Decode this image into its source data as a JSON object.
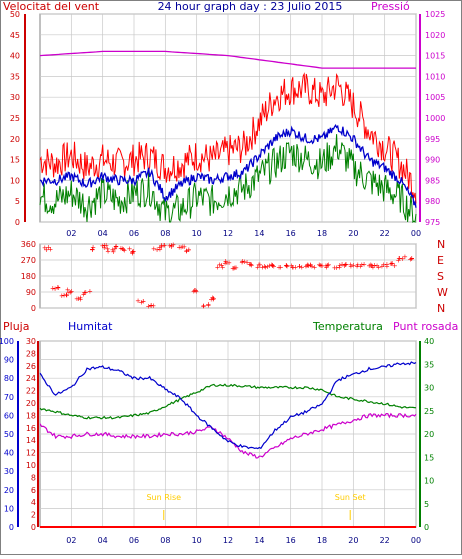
{
  "header": {
    "left_label": "Velocitat del vent",
    "title": "24 hour graph day : 23 Julio 2015",
    "right_label": "Pressió"
  },
  "colors": {
    "wind_gust": "#ff0000",
    "wind_avg": "#0000cc",
    "wind_low": "#008000",
    "pressure": "#cc00cc",
    "direction": "#ff0000",
    "humidity": "#0000cc",
    "temperature": "#008000",
    "dewpoint": "#cc00cc",
    "rain": "#ff0000",
    "sun_markers": "#ffcc00",
    "grid": "#c8c8c8",
    "left_axis": "#cc0000",
    "right_axis": "#cc00cc",
    "humidity_axis": "#0000cc",
    "temp_axis": "#008000"
  },
  "chart_data": [
    {
      "id": "wind",
      "type": "line",
      "title": "24 hour graph day : 23 Julio 2015",
      "ylabel_left": "Velocitat del vent",
      "ylabel_right": "Pressió",
      "ylim": [
        0,
        50
      ],
      "yticks": [
        0,
        5,
        10,
        15,
        20,
        25,
        30,
        35,
        40,
        45,
        50
      ],
      "ylim_right": [
        975,
        1025
      ],
      "yticks_right": [
        975,
        980,
        985,
        990,
        995,
        1000,
        1005,
        1010,
        1015,
        1020,
        1025
      ],
      "xlim": [
        0,
        24
      ],
      "xticks": [
        "02",
        "04",
        "06",
        "08",
        "10",
        "12",
        "14",
        "16",
        "18",
        "20",
        "22",
        "00"
      ],
      "series": [
        {
          "key": "gust",
          "axis": "left",
          "x": [
            0,
            1,
            2,
            3,
            4,
            5,
            6,
            7,
            8,
            9,
            10,
            11,
            12,
            13,
            14,
            15,
            16,
            17,
            18,
            19,
            20,
            21,
            22,
            23,
            24
          ],
          "values": [
            15,
            14,
            16,
            13,
            15,
            14,
            15,
            16,
            13,
            14,
            16,
            15,
            17,
            18,
            24,
            30,
            32,
            32,
            30,
            33,
            28,
            22,
            18,
            14,
            8
          ]
        },
        {
          "key": "average",
          "axis": "left",
          "x": [
            0,
            1,
            2,
            3,
            4,
            5,
            6,
            7,
            8,
            9,
            10,
            11,
            12,
            13,
            14,
            15,
            16,
            17,
            18,
            19,
            20,
            21,
            22,
            23,
            24
          ],
          "values": [
            10,
            10,
            11,
            9,
            11,
            10,
            10,
            12,
            6,
            9,
            11,
            10,
            11,
            12,
            16,
            20,
            22,
            20,
            20,
            23,
            20,
            15,
            13,
            10,
            4
          ]
        },
        {
          "key": "low",
          "axis": "left",
          "x": [
            0,
            1,
            2,
            3,
            4,
            5,
            6,
            7,
            8,
            9,
            10,
            11,
            12,
            13,
            14,
            15,
            16,
            17,
            18,
            19,
            20,
            21,
            22,
            23,
            24
          ],
          "values": [
            6,
            5,
            7,
            4,
            7,
            5,
            7,
            8,
            2,
            3,
            6,
            5,
            7,
            8,
            11,
            14,
            17,
            15,
            14,
            18,
            13,
            10,
            8,
            6,
            1
          ]
        },
        {
          "key": "pressure",
          "axis": "right",
          "x": [
            0,
            2,
            4,
            6,
            8,
            10,
            12,
            14,
            16,
            18,
            20,
            22,
            24
          ],
          "values": [
            1015,
            1015.5,
            1016,
            1016,
            1016,
            1015.5,
            1015,
            1014,
            1013,
            1012,
            1012,
            1012,
            1012
          ]
        }
      ]
    },
    {
      "id": "direction",
      "type": "scatter",
      "ylim": [
        0,
        360
      ],
      "yticks": [
        0,
        90,
        180,
        270,
        360
      ],
      "ylabels_right": [
        "N",
        "W",
        "S",
        "E",
        "N"
      ],
      "xlim": [
        0,
        24
      ],
      "x": [
        0.5,
        1,
        1.5,
        2,
        2.5,
        3,
        3.5,
        4,
        4.5,
        5,
        5.5,
        6,
        6.5,
        7,
        7.5,
        8,
        8.5,
        9,
        9.5,
        10,
        10.5,
        11,
        11.5,
        12,
        12.5,
        13,
        13.5,
        14,
        14.5,
        15,
        15.5,
        16,
        16.5,
        17,
        17.5,
        18,
        18.5,
        19,
        19.5,
        20,
        20.5,
        21,
        21.5,
        22,
        22.5,
        23,
        23.5
      ],
      "values": [
        340,
        120,
        80,
        100,
        60,
        90,
        340,
        350,
        330,
        345,
        335,
        320,
        40,
        20,
        340,
        350,
        355,
        350,
        330,
        100,
        20,
        60,
        240,
        260,
        230,
        260,
        250,
        240,
        235,
        245,
        240,
        240,
        238,
        242,
        240,
        245,
        240,
        238,
        242,
        240,
        245,
        240,
        238,
        245,
        250,
        280,
        285
      ]
    },
    {
      "id": "environment",
      "type": "line",
      "ylabel_rain": "Pluja",
      "ylabel_humidity": "Humitat",
      "ylabel_temp": "Temperatura",
      "ylabel_dew": "Punt rosada",
      "humidity_lim": [
        0,
        100
      ],
      "humidity_ticks": [
        0,
        10,
        20,
        30,
        40,
        50,
        60,
        70,
        80,
        90,
        100
      ],
      "rain_lim": [
        0,
        30
      ],
      "rain_ticks": [
        0,
        2,
        4,
        6,
        8,
        10,
        12,
        14,
        16,
        18,
        20,
        22,
        24,
        26,
        28,
        30
      ],
      "temp_lim": [
        0,
        40
      ],
      "temp_ticks": [
        0,
        5,
        10,
        15,
        20,
        25,
        30,
        35,
        40
      ],
      "xlim": [
        0,
        24
      ],
      "xticks": [
        "02",
        "04",
        "06",
        "08",
        "10",
        "12",
        "14",
        "16",
        "18",
        "20",
        "22",
        "00"
      ],
      "sun_rise_label": "Sun Rise",
      "sun_set_label": "Sun Set",
      "sun_rise_x": 7.9,
      "sun_set_x": 19.8,
      "series": [
        {
          "key": "humidity",
          "axis": "humidity",
          "x": [
            0,
            1,
            2,
            3,
            4,
            5,
            6,
            7,
            8,
            9,
            10,
            11,
            12,
            13,
            14,
            15,
            16,
            17,
            18,
            19,
            20,
            21,
            22,
            23,
            24
          ],
          "values": [
            82,
            71,
            75,
            85,
            86,
            84,
            80,
            80,
            74,
            69,
            60,
            53,
            46,
            43,
            42,
            52,
            59,
            62,
            66,
            79,
            82,
            85,
            86,
            88,
            88
          ]
        },
        {
          "key": "temperature",
          "axis": "temp",
          "x": [
            0,
            1,
            2,
            3,
            4,
            5,
            6,
            7,
            8,
            9,
            10,
            11,
            12,
            13,
            14,
            15,
            16,
            17,
            18,
            19,
            20,
            21,
            22,
            23,
            24
          ],
          "values": [
            25.5,
            24.8,
            24,
            23.5,
            23.5,
            23.5,
            24,
            24.5,
            26,
            27.5,
            29,
            30.5,
            30.5,
            30.3,
            30,
            30,
            30,
            30,
            29.5,
            28,
            27.5,
            27,
            26.5,
            25.8,
            25.5
          ]
        },
        {
          "key": "dewpoint",
          "axis": "temp",
          "x": [
            0,
            1,
            2,
            3,
            4,
            5,
            6,
            7,
            8,
            9,
            10,
            11,
            12,
            13,
            14,
            15,
            16,
            17,
            18,
            19,
            20,
            21,
            22,
            23,
            24
          ],
          "values": [
            22,
            19.5,
            19.5,
            20,
            20,
            19.5,
            19.5,
            19.5,
            20,
            20,
            20.5,
            21.5,
            19,
            16,
            15,
            17,
            19,
            20,
            21,
            22,
            23,
            24,
            24,
            24,
            24
          ]
        },
        {
          "key": "rain",
          "axis": "rain",
          "x": [
            0,
            24
          ],
          "values": [
            0,
            0
          ]
        }
      ]
    }
  ]
}
